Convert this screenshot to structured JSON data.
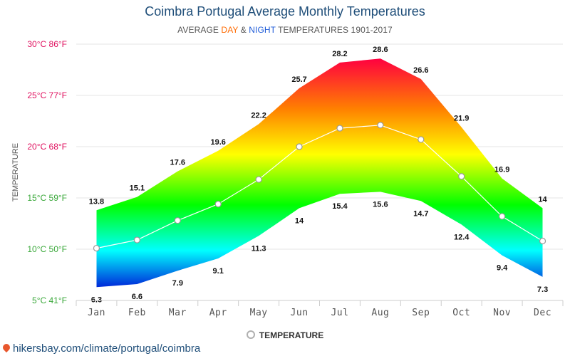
{
  "chart_data": {
    "type": "area",
    "title": "Coimbra Portugal Average Monthly Temperatures",
    "subtitle": {
      "prefix": "AVERAGE ",
      "day": "DAY",
      "amp": " & ",
      "night": "NIGHT",
      "suffix": " TEMPERATURES 1901-2017"
    },
    "ylabel": "TEMPERATURE",
    "ylim": [
      5,
      30
    ],
    "yticks": [
      {
        "value": 30,
        "label": "30°C 86°F",
        "color": "#e0115f"
      },
      {
        "value": 25,
        "label": "25°C 77°F",
        "color": "#e0115f"
      },
      {
        "value": 20,
        "label": "20°C 68°F",
        "color": "#e0115f"
      },
      {
        "value": 15,
        "label": "15°C 59°F",
        "color": "#3aa83a"
      },
      {
        "value": 10,
        "label": "10°C 50°F",
        "color": "#3aa83a"
      },
      {
        "value": 5,
        "label": "5°C 41°F",
        "color": "#3aa83a"
      }
    ],
    "categories": [
      "Jan",
      "Feb",
      "Mar",
      "Apr",
      "May",
      "Jun",
      "Jul",
      "Aug",
      "Sep",
      "Oct",
      "Nov",
      "Dec"
    ],
    "series": [
      {
        "name": "Day",
        "values": [
          13.8,
          15.1,
          17.6,
          19.6,
          22.2,
          25.7,
          28.2,
          28.6,
          26.6,
          21.9,
          16.9,
          14
        ]
      },
      {
        "name": "Night",
        "values": [
          6.3,
          6.6,
          7.9,
          9.1,
          11.3,
          14,
          15.4,
          15.6,
          14.7,
          12.4,
          9.4,
          7.3
        ]
      },
      {
        "name": "TEMPERATURE",
        "values": [
          10.1,
          10.9,
          12.8,
          14.4,
          16.8,
          20,
          21.8,
          22.1,
          20.7,
          17.1,
          13.2,
          10.8
        ]
      }
    ],
    "legend": "TEMPERATURE"
  },
  "source_text": "hikersbay.com/climate/portugal/coimbra",
  "colors": {
    "title": "#1f4e79",
    "day_accent": "#ff6a00",
    "night_accent": "#1e5bd8",
    "grid": "#e6e6e6"
  }
}
